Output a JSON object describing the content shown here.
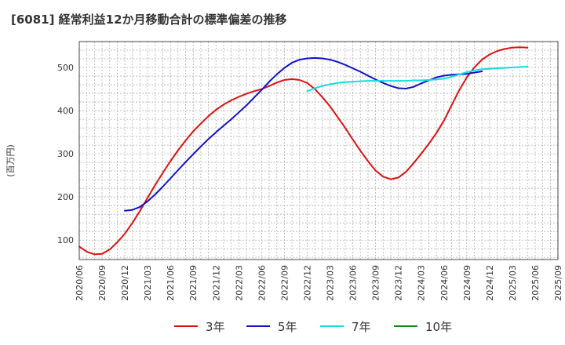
{
  "chart_data": {
    "type": "line",
    "title": "[6081]  経常利益12か月移動合計の標準偏差の推移",
    "xlabel": "",
    "ylabel": "(百万円)",
    "ylim": [
      55,
      560
    ],
    "xlim": [
      "2020/06",
      "2025/09"
    ],
    "yticks": [
      100,
      200,
      300,
      400,
      500
    ],
    "x_tick_labels": [
      "2020/06",
      "2020/09",
      "2020/12",
      "2021/03",
      "2021/06",
      "2021/09",
      "2021/12",
      "2022/03",
      "2022/06",
      "2022/09",
      "2022/12",
      "2023/03",
      "2023/06",
      "2023/09",
      "2023/12",
      "2024/03",
      "2024/06",
      "2024/09",
      "2024/12",
      "2025/03",
      "2025/06",
      "2025/09"
    ],
    "grid": true,
    "legend_position": "bottom",
    "series": [
      {
        "name": "3年",
        "color": "#dd1111",
        "points": [
          [
            "2020/06",
            85
          ],
          [
            "2020/07",
            73
          ],
          [
            "2020/08",
            67
          ],
          [
            "2020/09",
            68
          ],
          [
            "2020/10",
            78
          ],
          [
            "2020/11",
            95
          ],
          [
            "2020/12",
            115
          ],
          [
            "2021/01",
            140
          ],
          [
            "2021/02",
            168
          ],
          [
            "2021/03",
            198
          ],
          [
            "2021/04",
            228
          ],
          [
            "2021/05",
            256
          ],
          [
            "2021/06",
            283
          ],
          [
            "2021/07",
            308
          ],
          [
            "2021/08",
            331
          ],
          [
            "2021/09",
            352
          ],
          [
            "2021/10",
            370
          ],
          [
            "2021/11",
            387
          ],
          [
            "2021/12",
            402
          ],
          [
            "2022/01",
            414
          ],
          [
            "2022/02",
            424
          ],
          [
            "2022/03",
            432
          ],
          [
            "2022/04",
            439
          ],
          [
            "2022/05",
            445
          ],
          [
            "2022/06",
            450
          ],
          [
            "2022/07",
            457
          ],
          [
            "2022/08",
            465
          ],
          [
            "2022/09",
            471
          ],
          [
            "2022/10",
            473
          ],
          [
            "2022/11",
            471
          ],
          [
            "2022/12",
            464
          ],
          [
            "2023/01",
            450
          ],
          [
            "2023/02",
            431
          ],
          [
            "2023/03",
            410
          ],
          [
            "2023/04",
            385
          ],
          [
            "2023/05",
            360
          ],
          [
            "2023/06",
            333
          ],
          [
            "2023/07",
            307
          ],
          [
            "2023/08",
            283
          ],
          [
            "2023/09",
            261
          ],
          [
            "2023/10",
            247
          ],
          [
            "2023/11",
            241
          ],
          [
            "2023/12",
            245
          ],
          [
            "2024/01",
            258
          ],
          [
            "2024/02",
            278
          ],
          [
            "2024/03",
            300
          ],
          [
            "2024/04",
            323
          ],
          [
            "2024/05",
            348
          ],
          [
            "2024/06",
            377
          ],
          [
            "2024/07",
            412
          ],
          [
            "2024/08",
            447
          ],
          [
            "2024/09",
            477
          ],
          [
            "2024/10",
            500
          ],
          [
            "2024/11",
            518
          ],
          [
            "2024/12",
            530
          ],
          [
            "2025/01",
            538
          ],
          [
            "2025/02",
            543
          ],
          [
            "2025/03",
            546
          ],
          [
            "2025/04",
            547
          ],
          [
            "2025/05",
            546
          ]
        ]
      },
      {
        "name": "5年",
        "color": "#1111cc",
        "points": [
          [
            "2020/12",
            168
          ],
          [
            "2021/01",
            170
          ],
          [
            "2021/02",
            177
          ],
          [
            "2021/03",
            190
          ],
          [
            "2021/04",
            206
          ],
          [
            "2021/05",
            224
          ],
          [
            "2021/06",
            243
          ],
          [
            "2021/07",
            262
          ],
          [
            "2021/08",
            281
          ],
          [
            "2021/09",
            299
          ],
          [
            "2021/10",
            317
          ],
          [
            "2021/11",
            334
          ],
          [
            "2021/12",
            350
          ],
          [
            "2022/01",
            365
          ],
          [
            "2022/02",
            380
          ],
          [
            "2022/03",
            396
          ],
          [
            "2022/04",
            412
          ],
          [
            "2022/05",
            430
          ],
          [
            "2022/06",
            448
          ],
          [
            "2022/07",
            467
          ],
          [
            "2022/08",
            484
          ],
          [
            "2022/09",
            499
          ],
          [
            "2022/10",
            511
          ],
          [
            "2022/11",
            518
          ],
          [
            "2022/12",
            521
          ],
          [
            "2023/01",
            522
          ],
          [
            "2023/02",
            521
          ],
          [
            "2023/03",
            518
          ],
          [
            "2023/04",
            513
          ],
          [
            "2023/05",
            506
          ],
          [
            "2023/06",
            498
          ],
          [
            "2023/07",
            490
          ],
          [
            "2023/08",
            481
          ],
          [
            "2023/09",
            472
          ],
          [
            "2023/10",
            464
          ],
          [
            "2023/11",
            457
          ],
          [
            "2023/12",
            452
          ],
          [
            "2024/01",
            451
          ],
          [
            "2024/02",
            455
          ],
          [
            "2024/03",
            463
          ],
          [
            "2024/04",
            470
          ],
          [
            "2024/05",
            477
          ],
          [
            "2024/06",
            481
          ],
          [
            "2024/07",
            483
          ],
          [
            "2024/08",
            484
          ],
          [
            "2024/09",
            485
          ],
          [
            "2024/10",
            488
          ],
          [
            "2024/11",
            491
          ]
        ]
      },
      {
        "name": "7年",
        "color": "#11dddd",
        "points": [
          [
            "2022/12",
            445
          ],
          [
            "2023/01",
            452
          ],
          [
            "2023/02",
            457
          ],
          [
            "2023/03",
            461
          ],
          [
            "2023/04",
            464
          ],
          [
            "2023/05",
            466
          ],
          [
            "2023/06",
            467
          ],
          [
            "2023/07",
            468
          ],
          [
            "2023/08",
            469
          ],
          [
            "2023/09",
            469
          ],
          [
            "2023/10",
            469
          ],
          [
            "2023/11",
            469
          ],
          [
            "2023/12",
            469
          ],
          [
            "2024/01",
            469
          ],
          [
            "2024/02",
            470
          ],
          [
            "2024/03",
            470
          ],
          [
            "2024/04",
            471
          ],
          [
            "2024/05",
            472
          ],
          [
            "2024/06",
            474
          ],
          [
            "2024/07",
            478
          ],
          [
            "2024/08",
            484
          ],
          [
            "2024/09",
            489
          ],
          [
            "2024/10",
            493
          ],
          [
            "2024/11",
            496
          ],
          [
            "2024/12",
            497
          ],
          [
            "2025/01",
            498
          ],
          [
            "2025/02",
            499
          ],
          [
            "2025/03",
            500
          ],
          [
            "2025/04",
            501
          ],
          [
            "2025/05",
            502
          ]
        ]
      },
      {
        "name": "10年",
        "color": "#118811",
        "points": []
      }
    ]
  }
}
